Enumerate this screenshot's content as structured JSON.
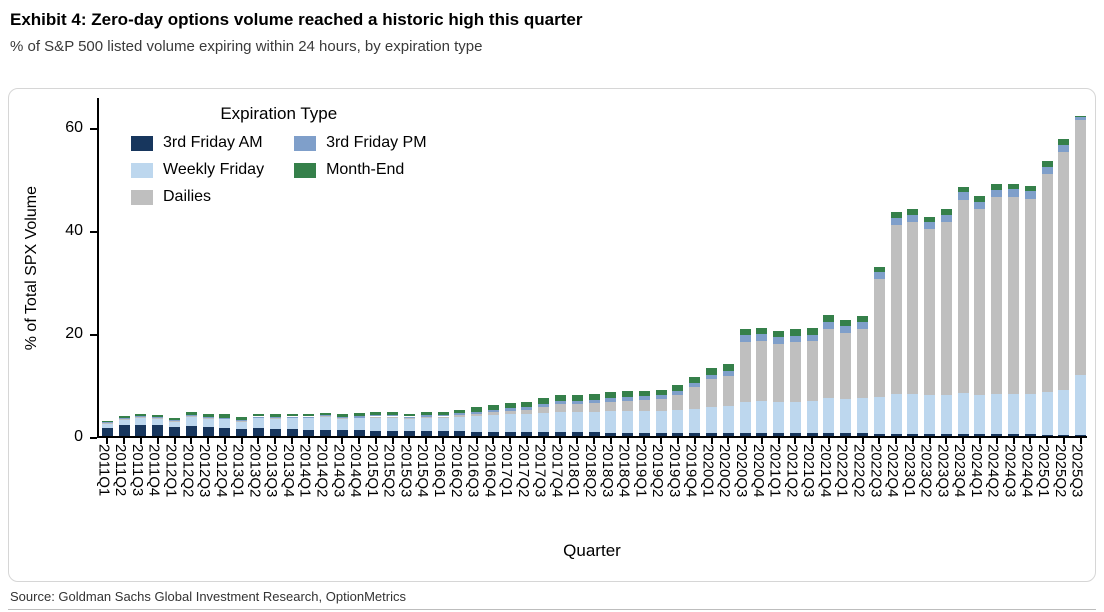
{
  "header": {
    "title": "Exhibit 4: Zero-day options volume reached a historic high this quarter",
    "subtitle": "% of S&P 500 listed volume expiring within 24 hours, by expiration type"
  },
  "footer": {
    "source": "Source: Goldman Sachs Global Investment Research, OptionMetrics"
  },
  "chart_data": {
    "type": "bar",
    "stacked": true,
    "xlabel": "Quarter",
    "ylabel": "% of Total SPX Volume",
    "ylim": [
      0,
      66
    ],
    "y_ticks": [
      0,
      20,
      40,
      60
    ],
    "grid": false,
    "legend": {
      "title": "Expiration Type",
      "position": "upper left",
      "columns": 2
    },
    "categories": [
      "2011Q1",
      "2011Q2",
      "2011Q3",
      "2011Q4",
      "2012Q1",
      "2012Q2",
      "2012Q3",
      "2012Q4",
      "2013Q1",
      "2013Q2",
      "2013Q3",
      "2013Q4",
      "2014Q1",
      "2014Q2",
      "2014Q3",
      "2014Q4",
      "2015Q1",
      "2015Q2",
      "2015Q3",
      "2015Q4",
      "2016Q1",
      "2016Q2",
      "2016Q3",
      "2016Q4",
      "2017Q1",
      "2017Q2",
      "2017Q3",
      "2017Q4",
      "2018Q1",
      "2018Q2",
      "2018Q3",
      "2018Q4",
      "2019Q1",
      "2019Q2",
      "2019Q3",
      "2019Q4",
      "2020Q1",
      "2020Q2",
      "2020Q3",
      "2020Q4",
      "2021Q1",
      "2021Q2",
      "2021Q3",
      "2021Q4",
      "2022Q1",
      "2022Q2",
      "2022Q3",
      "2022Q4",
      "2023Q1",
      "2023Q2",
      "2023Q3",
      "2023Q4",
      "2024Q1",
      "2024Q2",
      "2024Q3",
      "2024Q4",
      "2025Q1",
      "2025Q2",
      "2025Q3"
    ],
    "series": [
      {
        "name": "3rd Friday AM",
        "color": "#17365d",
        "values": [
          1.6,
          2.1,
          2.2,
          2.1,
          1.7,
          2.0,
          1.8,
          1.6,
          1.4,
          1.5,
          1.3,
          1.3,
          1.2,
          1.2,
          1.1,
          1.1,
          1.0,
          1.0,
          1.0,
          0.9,
          0.9,
          0.9,
          0.8,
          0.8,
          0.8,
          0.8,
          0.7,
          0.7,
          0.7,
          0.7,
          0.6,
          0.6,
          0.6,
          0.6,
          0.6,
          0.6,
          0.6,
          0.6,
          0.5,
          0.5,
          0.5,
          0.5,
          0.5,
          0.5,
          0.5,
          0.5,
          0.4,
          0.4,
          0.4,
          0.4,
          0.4,
          0.4,
          0.4,
          0.4,
          0.4,
          0.4,
          0.3,
          0.3,
          0.3
        ]
      },
      {
        "name": "Weekly Friday",
        "color": "#bdd7ee",
        "values": [
          0.8,
          1.1,
          1.4,
          1.3,
          1.2,
          1.8,
          1.6,
          1.7,
          1.5,
          2.0,
          2.1,
          2.2,
          2.3,
          2.5,
          2.3,
          2.4,
          2.6,
          2.6,
          2.3,
          2.6,
          2.6,
          2.8,
          3.0,
          3.2,
          3.4,
          3.5,
          3.8,
          4.0,
          4.0,
          4.0,
          4.2,
          4.2,
          4.2,
          4.2,
          4.4,
          4.6,
          5.0,
          5.2,
          6.2,
          6.3,
          6.2,
          6.2,
          6.3,
          6.8,
          6.6,
          6.8,
          7.2,
          7.8,
          7.8,
          7.5,
          7.6,
          8.0,
          7.6,
          7.8,
          7.8,
          7.8,
          8.2,
          8.6,
          11.6
        ]
      },
      {
        "name": "Dailies",
        "color": "#bfbfbf",
        "values": [
          0.1,
          0.1,
          0.1,
          0.1,
          0.1,
          0.1,
          0.1,
          0.1,
          0.1,
          0.1,
          0.1,
          0.1,
          0.1,
          0.1,
          0.1,
          0.1,
          0.2,
          0.2,
          0.2,
          0.2,
          0.3,
          0.3,
          0.5,
          0.6,
          0.7,
          0.8,
          1.2,
          1.5,
          1.5,
          1.7,
          1.9,
          2.1,
          2.2,
          2.4,
          2.9,
          4.3,
          5.4,
          5.9,
          11.6,
          11.7,
          11.2,
          11.5,
          11.6,
          13.5,
          12.9,
          13.4,
          22.8,
          32.8,
          33.3,
          32.2,
          33.6,
          37.5,
          36.1,
          38.2,
          38.3,
          37.9,
          42.4,
          46.2,
          49.5
        ]
      },
      {
        "name": "3rd Friday PM",
        "color": "#7f9fca",
        "values": [
          0.2,
          0.2,
          0.2,
          0.2,
          0.2,
          0.2,
          0.2,
          0.2,
          0.2,
          0.2,
          0.2,
          0.2,
          0.2,
          0.2,
          0.2,
          0.3,
          0.3,
          0.3,
          0.3,
          0.3,
          0.3,
          0.4,
          0.4,
          0.5,
          0.5,
          0.5,
          0.6,
          0.6,
          0.6,
          0.6,
          0.7,
          0.7,
          0.7,
          0.7,
          0.8,
          0.8,
          0.9,
          0.9,
          1.3,
          1.3,
          1.3,
          1.3,
          1.3,
          1.4,
          1.4,
          1.4,
          1.4,
          1.4,
          1.4,
          1.4,
          1.4,
          1.4,
          1.4,
          1.4,
          1.4,
          1.4,
          1.4,
          1.4,
          0.5
        ]
      },
      {
        "name": "Month-End",
        "color": "#35804a",
        "values": [
          0.3,
          0.4,
          0.4,
          0.3,
          0.3,
          0.5,
          0.5,
          0.6,
          0.4,
          0.5,
          0.5,
          0.5,
          0.5,
          0.5,
          0.5,
          0.5,
          0.5,
          0.6,
          0.5,
          0.6,
          0.6,
          0.7,
          0.9,
          0.9,
          1.0,
          1.0,
          1.1,
          1.2,
          1.1,
          1.1,
          1.2,
          1.2,
          1.1,
          1.1,
          1.2,
          1.2,
          1.3,
          1.3,
          1.2,
          1.2,
          1.2,
          1.2,
          1.2,
          1.2,
          1.2,
          1.2,
          1.1,
          1.1,
          1.1,
          1.1,
          1.1,
          1.1,
          1.1,
          1.1,
          1.1,
          1.1,
          1.1,
          1.1,
          0.3
        ]
      }
    ],
    "legend_order": [
      "3rd Friday AM",
      "3rd Friday PM",
      "Weekly Friday",
      "Month-End",
      "Dailies"
    ]
  }
}
